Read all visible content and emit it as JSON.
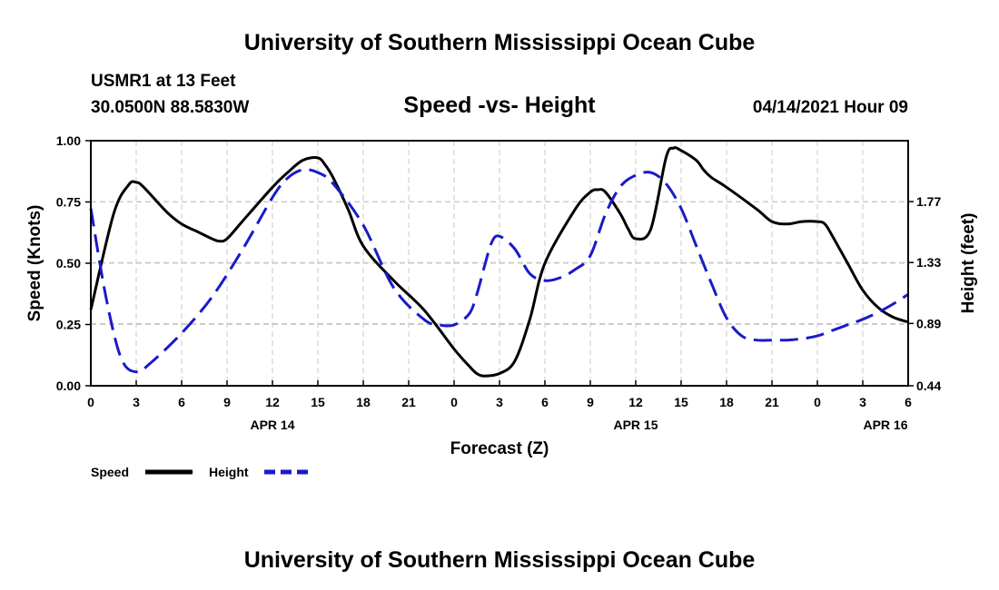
{
  "header": {
    "title": "University of Southern Mississippi Ocean Cube",
    "station": "USMR1 at 13 Feet",
    "location": "30.0500N  88.5830W",
    "subtitle": "Speed -vs- Height",
    "datetime": "04/14/2021 Hour 09"
  },
  "footer": {
    "title": "University of Southern Mississippi Ocean Cube"
  },
  "colors": {
    "speed": "#000000",
    "height": "#1a1ac8",
    "grid": "#c8c8c8"
  },
  "chart_data": {
    "type": "line",
    "title": "Speed -vs- Height",
    "xlabel": "Forecast (Z)",
    "ylabel": "Speed (Knots)",
    "ylabel_right": "Height (feet)",
    "xlim": [
      0,
      54
    ],
    "ylim": [
      0,
      1
    ],
    "ylim_right": [
      0.44,
      2.21
    ],
    "x_tick_labels": [
      "0",
      "3",
      "6",
      "9",
      "12",
      "15",
      "18",
      "21",
      "0",
      "3",
      "6",
      "9",
      "12",
      "15",
      "18",
      "21",
      "0",
      "3",
      "6"
    ],
    "date_labels": [
      {
        "label": "APR 14",
        "x": 12
      },
      {
        "label": "APR 15",
        "x": 36
      },
      {
        "label": "APR 16",
        "x": 52.5
      }
    ],
    "y_ticks": [
      "0.00",
      "0.25",
      "0.50",
      "0.75",
      "1.00"
    ],
    "y_ticks_right": [
      "0.44",
      "0.89",
      "1.33",
      "1.77"
    ],
    "grid": true,
    "legend": {
      "position": "bottom-left",
      "entries": [
        "Speed",
        "Height"
      ]
    },
    "series": [
      {
        "name": "Speed",
        "axis": "left",
        "style": "solid",
        "x": [
          0,
          1.5,
          2.5,
          3,
          3.5,
          5,
          6,
          7,
          8,
          8.5,
          9,
          10,
          12,
          13,
          14,
          15,
          15.5,
          16,
          17,
          18,
          20,
          22,
          24,
          25,
          25.5,
          26,
          27,
          28,
          29,
          30,
          32,
          33,
          33.5,
          34,
          35,
          35.5,
          36,
          37,
          38,
          38.5,
          39,
          40,
          40.5,
          41,
          42,
          44,
          45,
          46,
          47,
          48,
          48.5,
          49,
          50,
          51,
          52,
          53,
          54
        ],
        "values": [
          0.31,
          0.7,
          0.82,
          0.83,
          0.81,
          0.71,
          0.66,
          0.63,
          0.6,
          0.59,
          0.6,
          0.67,
          0.81,
          0.87,
          0.92,
          0.93,
          0.9,
          0.85,
          0.72,
          0.57,
          0.43,
          0.31,
          0.15,
          0.08,
          0.05,
          0.04,
          0.05,
          0.1,
          0.27,
          0.5,
          0.72,
          0.79,
          0.8,
          0.79,
          0.7,
          0.64,
          0.6,
          0.64,
          0.93,
          0.97,
          0.96,
          0.92,
          0.88,
          0.85,
          0.81,
          0.72,
          0.67,
          0.66,
          0.67,
          0.67,
          0.66,
          0.61,
          0.5,
          0.39,
          0.32,
          0.28,
          0.26
        ]
      },
      {
        "name": "Height",
        "axis": "right",
        "style": "dashed",
        "x": [
          0,
          1,
          2,
          3,
          4,
          6,
          8,
          10,
          12,
          13,
          14,
          15,
          16,
          18,
          20,
          22,
          23,
          24,
          25,
          25.5,
          26,
          26.5,
          27,
          28,
          29,
          30,
          31,
          32,
          33,
          34,
          35,
          36,
          37,
          38,
          39,
          40,
          41,
          42,
          43,
          44,
          45,
          46,
          47,
          48,
          49,
          50,
          51,
          52,
          53,
          54
        ],
        "values": [
          1.72,
          1.08,
          0.64,
          0.54,
          0.61,
          0.82,
          1.08,
          1.42,
          1.8,
          1.94,
          2.0,
          1.98,
          1.9,
          1.6,
          1.15,
          0.92,
          0.88,
          0.88,
          0.96,
          1.1,
          1.3,
          1.48,
          1.52,
          1.43,
          1.25,
          1.2,
          1.22,
          1.28,
          1.38,
          1.68,
          1.88,
          1.96,
          1.98,
          1.9,
          1.72,
          1.45,
          1.18,
          0.93,
          0.8,
          0.77,
          0.77,
          0.77,
          0.78,
          0.8,
          0.84,
          0.88,
          0.92,
          0.97,
          1.03,
          1.1
        ]
      }
    ]
  }
}
